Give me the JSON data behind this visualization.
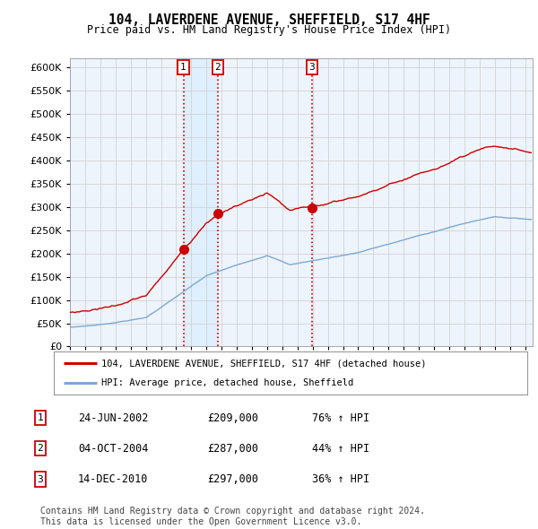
{
  "title": "104, LAVERDENE AVENUE, SHEFFIELD, S17 4HF",
  "subtitle": "Price paid vs. HM Land Registry's House Price Index (HPI)",
  "ytick_values": [
    0,
    50000,
    100000,
    150000,
    200000,
    250000,
    300000,
    350000,
    400000,
    450000,
    500000,
    550000,
    600000
  ],
  "xlim_start": 1995.0,
  "xlim_end": 2025.5,
  "ylim_min": 0,
  "ylim_max": 620000,
  "hpi_color": "#7aaad4",
  "price_color": "#cc0000",
  "vline_color": "#cc0000",
  "shade_color": "#ddeeff",
  "sale1_date": 2002.48,
  "sale1_price": 209000,
  "sale2_date": 2004.75,
  "sale2_price": 287000,
  "sale3_date": 2010.95,
  "sale3_price": 297000,
  "legend_price_label": "104, LAVERDENE AVENUE, SHEFFIELD, S17 4HF (detached house)",
  "legend_hpi_label": "HPI: Average price, detached house, Sheffield",
  "table_rows": [
    [
      "1",
      "24-JUN-2002",
      "£209,000",
      "76% ↑ HPI"
    ],
    [
      "2",
      "04-OCT-2004",
      "£287,000",
      "44% ↑ HPI"
    ],
    [
      "3",
      "14-DEC-2010",
      "£297,000",
      "36% ↑ HPI"
    ]
  ],
  "footer_text": "Contains HM Land Registry data © Crown copyright and database right 2024.\nThis data is licensed under the Open Government Licence v3.0.",
  "background_color": "#ffffff",
  "plot_bg_color": "#eef4fb",
  "grid_color": "#cccccc"
}
